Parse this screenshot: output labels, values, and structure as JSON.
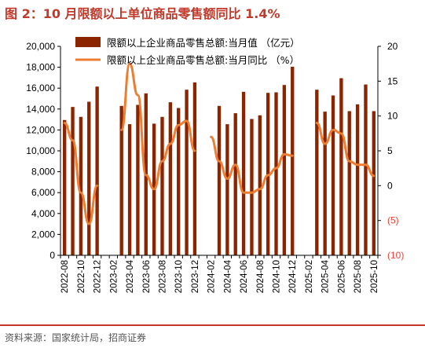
{
  "page": {
    "title": "图 2：10 月限额以上单位商品零售额同比 1.4%",
    "source": "资料来源：国家统计局，招商证券"
  },
  "colors": {
    "bar": "#8B2500",
    "line": "#ED7D31",
    "title": "#c0392b",
    "negative_tick": "#e8453c",
    "axis_text": "#000000"
  },
  "chart_data": {
    "type": "bar",
    "x": [
      "2022-08",
      "2022-09",
      "2022-10",
      "2022-11",
      "2022-12",
      "2023-01",
      "2023-02",
      "2023-03",
      "2023-04",
      "2023-05",
      "2023-06",
      "2023-07",
      "2023-08",
      "2023-09",
      "2023-10",
      "2023-11",
      "2023-12",
      "2024-01",
      "2024-02",
      "2024-03",
      "2024-04",
      "2024-05",
      "2024-06",
      "2024-07",
      "2024-08",
      "2024-09",
      "2024-10",
      "2024-11",
      "2024-12",
      "2025-01",
      "2025-02",
      "2025-03",
      "2025-04",
      "2025-05",
      "2025-06",
      "2025-07",
      "2025-08",
      "2025-09",
      "2025-10"
    ],
    "x_tick_labels": [
      "2022-08",
      "2022-10",
      "2022-12",
      "2023-02",
      "2023-04",
      "2023-06",
      "2023-08",
      "2023-10",
      "2023-12",
      "2024-02",
      "2024-04",
      "2024-06",
      "2024-08",
      "2024-10",
      "2024-12",
      "2025-02",
      "2025-04",
      "2025-06",
      "2025-08",
      "2025-10"
    ],
    "series": [
      {
        "name": "限额以上企业商品零售总额:当月值 （亿元）",
        "type": "bar",
        "axis": "left",
        "values": [
          12950,
          14200,
          13250,
          14700,
          16150,
          null,
          null,
          14300,
          12550,
          14400,
          15500,
          12600,
          13250,
          14650,
          14100,
          15850,
          16550,
          null,
          null,
          14300,
          12550,
          13600,
          15650,
          13050,
          13400,
          15550,
          15600,
          16300,
          18050,
          null,
          null,
          15850,
          13750,
          15300,
          16950,
          13800,
          14450,
          16350,
          13800
        ]
      },
      {
        "name": "限额以上企业商品零售总额:当月同比 （%）",
        "type": "line",
        "axis": "right",
        "values": [
          9.0,
          6.5,
          -1.0,
          -5.5,
          0.0,
          null,
          null,
          8.0,
          17.5,
          13.0,
          1.5,
          -0.5,
          3.5,
          6.0,
          8.7,
          9.3,
          5.0,
          null,
          7.0,
          3.5,
          1.0,
          3.0,
          -1.0,
          -1.0,
          -0.5,
          1.5,
          2.5,
          4.5,
          4.3,
          null,
          null,
          9.0,
          6.0,
          8.0,
          7.5,
          3.5,
          3.0,
          3.0,
          1.4
        ]
      }
    ],
    "left_axis": {
      "ylim": [
        0,
        20000
      ],
      "ticks": [
        "0",
        "2,000",
        "4,000",
        "6,000",
        "8,000",
        "10,000",
        "12,000",
        "14,000",
        "16,000",
        "18,000",
        "20,000"
      ]
    },
    "right_axis": {
      "ylim": [
        -10,
        20
      ],
      "ticks": [
        "(10)",
        "(5)",
        "0",
        "5",
        "10",
        "15",
        "20"
      ]
    },
    "legend_position": "top-center",
    "grid": false
  }
}
